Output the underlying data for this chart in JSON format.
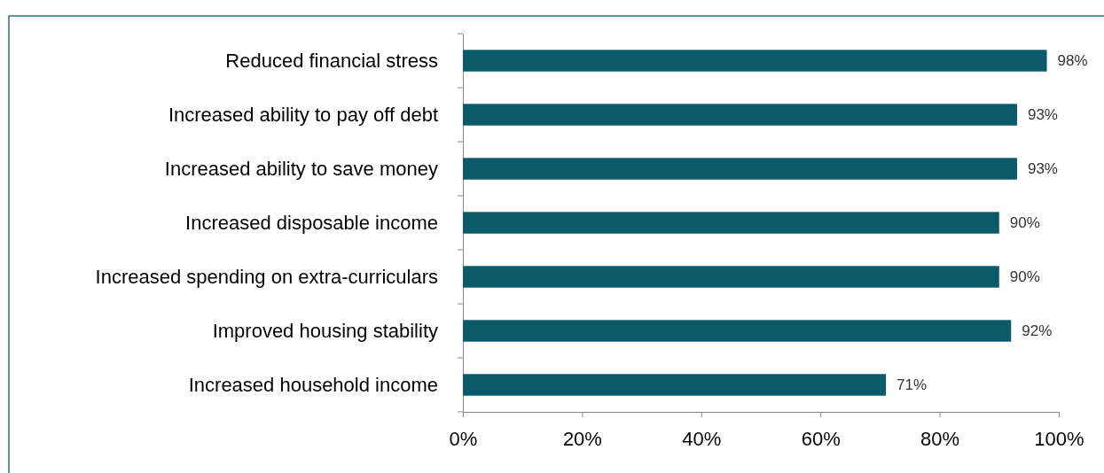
{
  "chart_data": {
    "type": "bar",
    "orientation": "horizontal",
    "categories": [
      "Reduced financial stress",
      "Increased ability to pay off debt",
      "Increased ability to save money",
      "Increased disposable income",
      "Increased spending on extra-curriculars",
      "Improved housing stability",
      "Increased household income"
    ],
    "values": [
      98,
      93,
      93,
      90,
      90,
      92,
      71
    ],
    "color": "#0b5a69",
    "data_labels": true,
    "value_labels": [
      "98%",
      "93%",
      "93%",
      "90%",
      "90%",
      "92%",
      "71%"
    ],
    "xlim": [
      0,
      100
    ],
    "xticks": [
      {
        "value": 0,
        "label": "0%"
      },
      {
        "value": 20,
        "label": "20%"
      },
      {
        "value": 40,
        "label": "40%"
      },
      {
        "value": 60,
        "label": "60%"
      },
      {
        "value": 80,
        "label": "80%"
      },
      {
        "value": 100,
        "label": "100%"
      }
    ],
    "grid": false
  }
}
